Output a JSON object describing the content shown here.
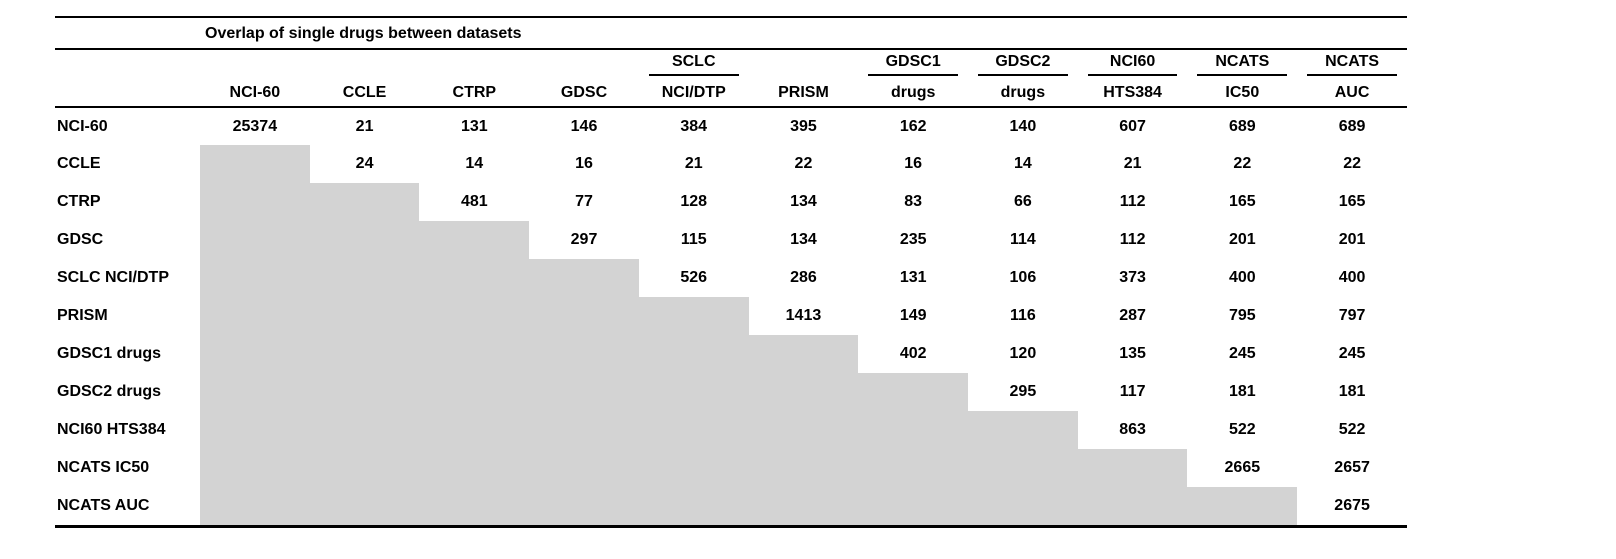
{
  "chart_data": {
    "type": "table",
    "title": "Overlap of single drugs between datasets",
    "shaded_color": "#d3d3d3",
    "column_headers": [
      {
        "top": "",
        "bottom": "NCI-60"
      },
      {
        "top": "",
        "bottom": "CCLE"
      },
      {
        "top": "",
        "bottom": "CTRP"
      },
      {
        "top": "",
        "bottom": "GDSC"
      },
      {
        "top": "SCLC",
        "bottom": "NCI/DTP"
      },
      {
        "top": "",
        "bottom": "PRISM"
      },
      {
        "top": "GDSC1",
        "bottom": "drugs"
      },
      {
        "top": "GDSC2",
        "bottom": "drugs"
      },
      {
        "top": "NCI60",
        "bottom": "HTS384"
      },
      {
        "top": "NCATS",
        "bottom": "IC50"
      },
      {
        "top": "NCATS",
        "bottom": "AUC"
      }
    ],
    "rows": [
      {
        "label": "NCI-60",
        "values": [
          "25374",
          "21",
          "131",
          "146",
          "384",
          "395",
          "162",
          "140",
          "607",
          "689",
          "689"
        ]
      },
      {
        "label": "CCLE",
        "values": [
          null,
          "24",
          "14",
          "16",
          "21",
          "22",
          "16",
          "14",
          "21",
          "22",
          "22"
        ]
      },
      {
        "label": "CTRP",
        "values": [
          null,
          null,
          "481",
          "77",
          "128",
          "134",
          "83",
          "66",
          "112",
          "165",
          "165"
        ]
      },
      {
        "label": "GDSC",
        "values": [
          null,
          null,
          null,
          "297",
          "115",
          "134",
          "235",
          "114",
          "112",
          "201",
          "201"
        ]
      },
      {
        "label": "SCLC NCI/DTP",
        "values": [
          null,
          null,
          null,
          null,
          "526",
          "286",
          "131",
          "106",
          "373",
          "400",
          "400"
        ]
      },
      {
        "label": "PRISM",
        "values": [
          null,
          null,
          null,
          null,
          null,
          "1413",
          "149",
          "116",
          "287",
          "795",
          "797"
        ]
      },
      {
        "label": "GDSC1 drugs",
        "values": [
          null,
          null,
          null,
          null,
          null,
          null,
          "402",
          "120",
          "135",
          "245",
          "245"
        ]
      },
      {
        "label": "GDSC2 drugs",
        "values": [
          null,
          null,
          null,
          null,
          null,
          null,
          null,
          "295",
          "117",
          "181",
          "181"
        ]
      },
      {
        "label": "NCI60 HTS384",
        "values": [
          null,
          null,
          null,
          null,
          null,
          null,
          null,
          null,
          "863",
          "522",
          "522"
        ]
      },
      {
        "label": "NCATS IC50",
        "values": [
          null,
          null,
          null,
          null,
          null,
          null,
          null,
          null,
          null,
          "2665",
          "2657"
        ]
      },
      {
        "label": "NCATS AUC",
        "values": [
          null,
          null,
          null,
          null,
          null,
          null,
          null,
          null,
          null,
          null,
          "2675"
        ]
      }
    ]
  }
}
